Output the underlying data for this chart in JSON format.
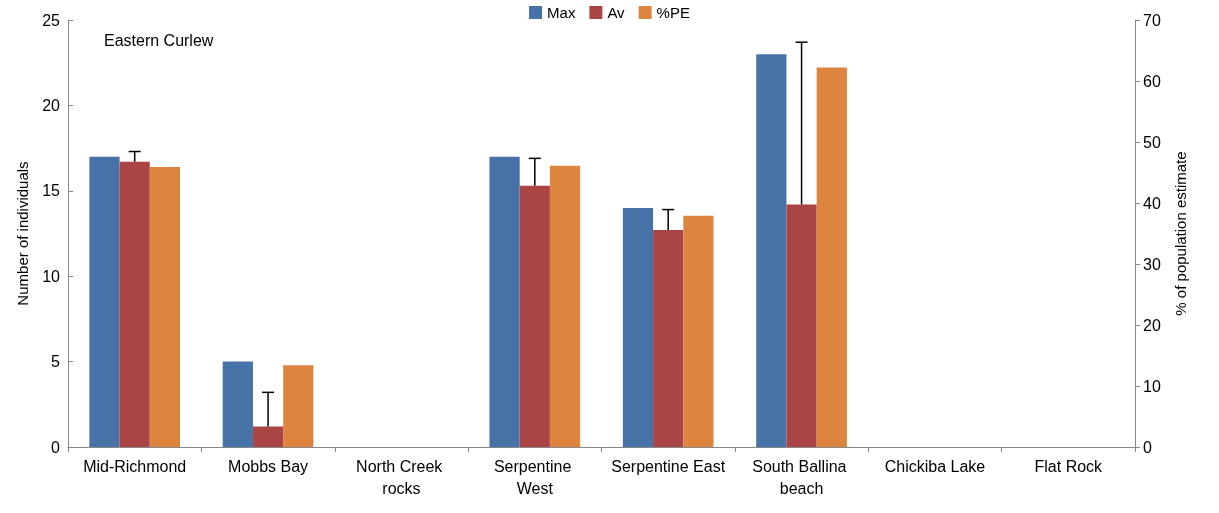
{
  "chart_data": {
    "type": "bar",
    "categories": [
      "Mid-Richmond",
      "Mobbs Bay",
      "North Creek rocks",
      "Serpentine West",
      "Serpentine East",
      "South Ballina beach",
      "Chickiba Lake",
      "Flat Rock"
    ],
    "series": [
      {
        "name": "Max",
        "color": "#4672a8",
        "values": [
          17,
          5,
          0,
          17,
          14,
          23,
          0,
          0
        ]
      },
      {
        "name": "Av",
        "color": "#a94645",
        "values": [
          16.7,
          1.2,
          0,
          15.3,
          12.7,
          14.2,
          0,
          0
        ],
        "errors": [
          [
            16.7,
            17.3
          ],
          [
            1.2,
            3.2
          ],
          null,
          [
            15.3,
            16.9
          ],
          [
            12.7,
            13.9
          ],
          [
            14.2,
            23.7
          ],
          null,
          null
        ]
      },
      {
        "name": "%PE",
        "color": "#dd853f",
        "axis": "y2",
        "values": [
          45.9,
          13.4,
          0,
          46.1,
          37.9,
          62.2,
          0,
          0
        ]
      }
    ],
    "ylabel": "Number of individuals",
    "y2label": "% of population estimate",
    "ylim": [
      0,
      25
    ],
    "yticks": [
      0,
      5,
      10,
      15,
      20,
      25
    ],
    "y2lim": [
      0,
      70
    ],
    "y2ticks": [
      0,
      10,
      20,
      30,
      40,
      50,
      60,
      70
    ],
    "annotations": [
      "Eastern Curlew"
    ],
    "legend": "top",
    "grid": false
  }
}
